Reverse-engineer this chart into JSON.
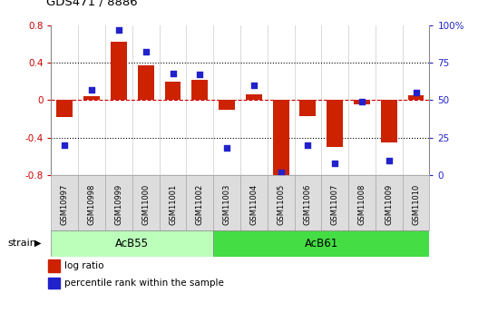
{
  "title": "GDS471 / 8886",
  "samples": [
    "GSM10997",
    "GSM10998",
    "GSM10999",
    "GSM11000",
    "GSM11001",
    "GSM11002",
    "GSM11003",
    "GSM11004",
    "GSM11005",
    "GSM11006",
    "GSM11007",
    "GSM11008",
    "GSM11009",
    "GSM11010"
  ],
  "log_ratio": [
    -0.18,
    0.04,
    0.62,
    0.37,
    0.2,
    0.22,
    -0.1,
    0.06,
    -0.8,
    -0.17,
    -0.5,
    -0.04,
    -0.45,
    0.05
  ],
  "percentile": [
    20,
    57,
    97,
    82,
    68,
    67,
    18,
    60,
    2,
    20,
    8,
    49,
    10,
    55
  ],
  "groups": [
    {
      "label": "AcB55",
      "start": 0,
      "end": 5,
      "color": "#bbffbb"
    },
    {
      "label": "AcB61",
      "start": 6,
      "end": 13,
      "color": "#44dd44"
    }
  ],
  "bar_color": "#cc2200",
  "dot_color": "#2222cc",
  "ylim": [
    -0.8,
    0.8
  ],
  "y2lim": [
    0,
    100
  ],
  "yticks_left": [
    -0.8,
    -0.4,
    0.0,
    0.4,
    0.8
  ],
  "ytick_labels_left": [
    "-0.8",
    "-0.4",
    "0",
    "0.4",
    "0.8"
  ],
  "y2ticks": [
    0,
    25,
    50,
    75,
    100
  ],
  "y2tick_labels": [
    "0",
    "25",
    "50",
    "75",
    "100"
  ],
  "dotted_lines": [
    -0.4,
    0.4
  ],
  "zero_line_color": "#cc0000",
  "bg_color": "#ffffff",
  "strain_label": "strain",
  "legend_items": [
    {
      "label": "log ratio",
      "color": "#cc2200"
    },
    {
      "label": "percentile rank within the sample",
      "color": "#2222cc"
    }
  ]
}
